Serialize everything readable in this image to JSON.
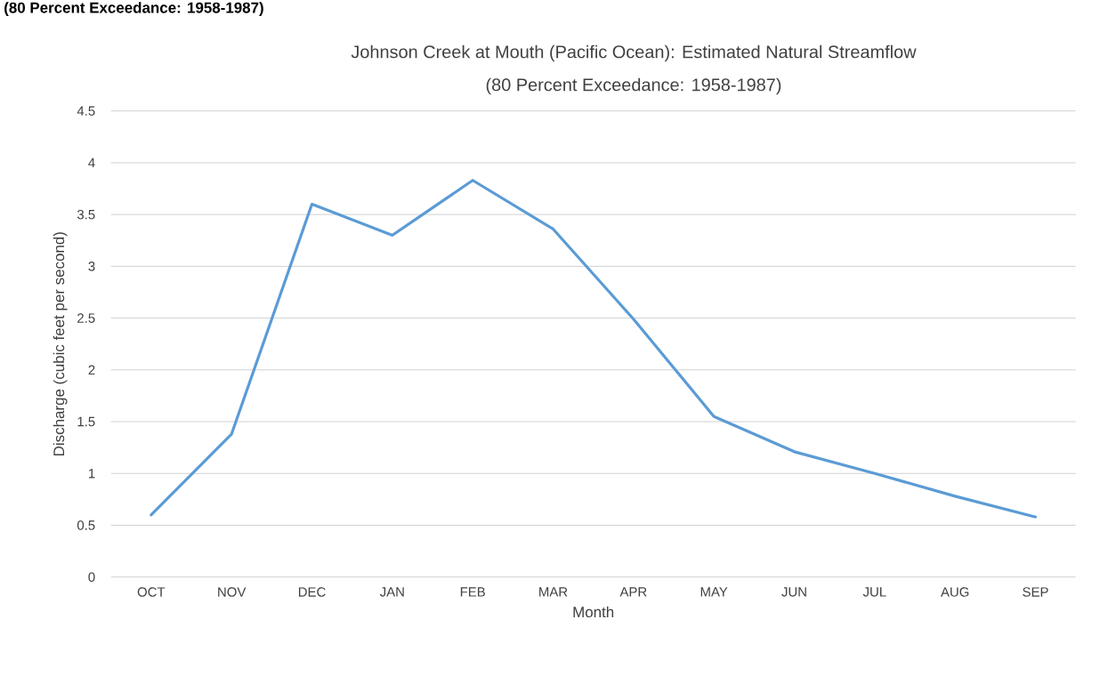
{
  "chart_data": {
    "type": "line",
    "title": "Johnson Creek at Mouth (Pacific Ocean): Estimated Natural Streamflow",
    "subtitle": "(80 Percent Exceedance: 1958-1987)",
    "annotations": [
      "(80 Percent Exceedance: 1958-1987)"
    ],
    "xlabel": "Month",
    "ylabel": "Discharge (cubic feet per second)",
    "categories": [
      "OCT",
      "NOV",
      "DEC",
      "JAN",
      "FEB",
      "MAR",
      "APR",
      "MAY",
      "JUN",
      "JUL",
      "AUG",
      "SEP"
    ],
    "values": [
      0.6,
      1.38,
      3.6,
      3.3,
      3.83,
      3.36,
      2.49,
      1.55,
      1.21,
      1.0,
      0.78,
      0.58
    ],
    "color": "#5b9bd5",
    "ylim": [
      0,
      4.5
    ],
    "yticks": [
      0,
      0.5,
      1,
      1.5,
      2,
      2.5,
      3,
      3.5,
      4,
      4.5
    ],
    "grid": "y"
  }
}
